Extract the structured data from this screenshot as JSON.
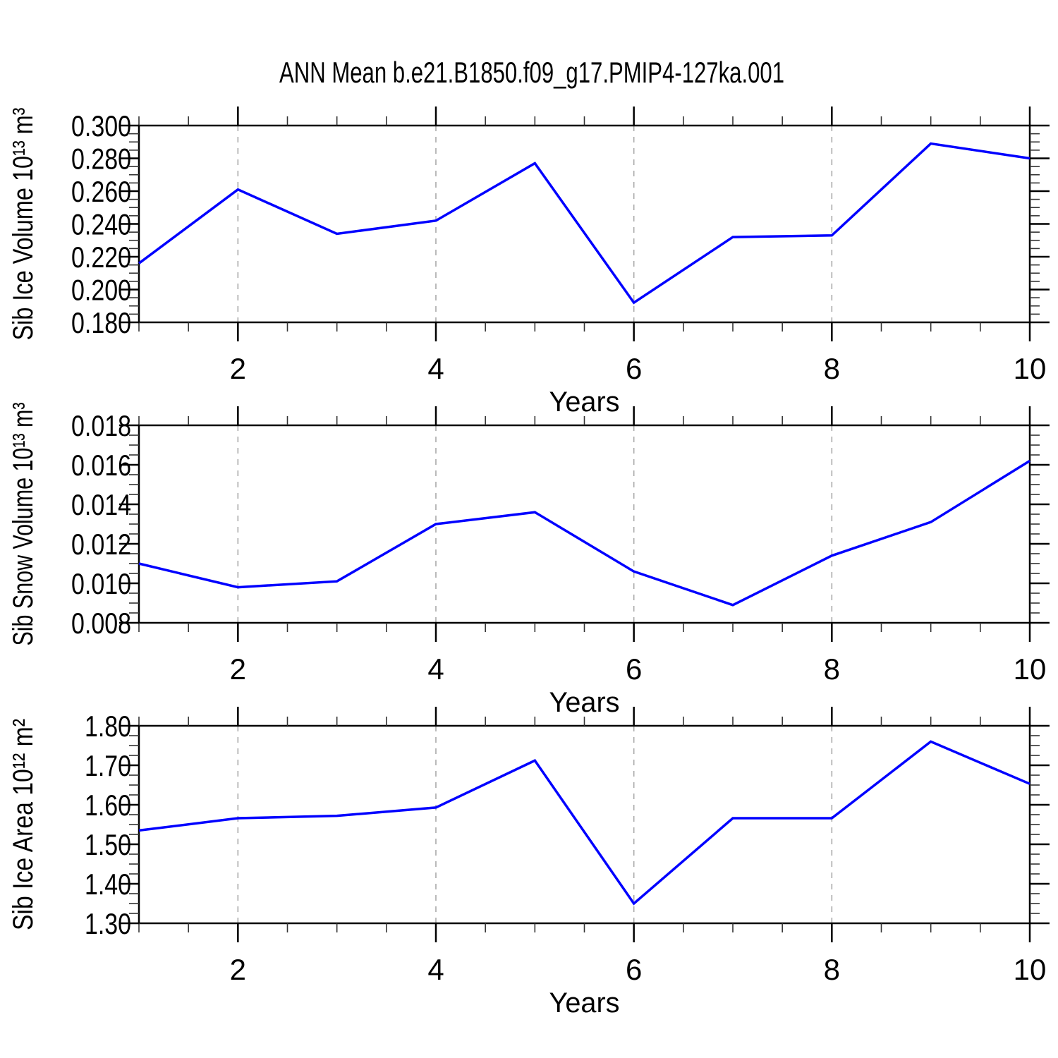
{
  "title": "ANN Mean b.e21.B1850.f09_g17.PMIP4-127ka.001",
  "colors": {
    "line": "#0000ff",
    "grid": "#aaaaaa",
    "axis": "#000000",
    "minor_tick": "#333333"
  },
  "chart_data": [
    {
      "type": "line",
      "ylabel": "Sib Ice Volume 10¹³ m³",
      "xlabel": "Years",
      "x": [
        1,
        2,
        3,
        4,
        5,
        6,
        7,
        8,
        9,
        10
      ],
      "values": [
        0.216,
        0.261,
        0.234,
        0.242,
        0.277,
        0.192,
        0.232,
        0.233,
        0.289,
        0.28
      ],
      "xlim": [
        1,
        10
      ],
      "ylim": [
        0.18,
        0.3
      ],
      "yticks": {
        "major_values": [
          0.18,
          0.2,
          0.22,
          0.24,
          0.26,
          0.28,
          0.3
        ],
        "labels": [
          "0.180",
          "0.200",
          "0.220",
          "0.240",
          "0.260",
          "0.280",
          "0.300"
        ],
        "minor_step": 0.005
      },
      "xticks": {
        "major_values": [
          2,
          4,
          6,
          8,
          10
        ],
        "labels": [
          "2",
          "4",
          "6",
          "8",
          "10"
        ],
        "minor_step": 0.5
      },
      "grid_x": [
        2,
        4,
        6,
        8
      ],
      "grid": "vertical-dashed",
      "legend": "none"
    },
    {
      "type": "line",
      "ylabel": "Sib Snow Volume 10¹³ m³",
      "xlabel": "Years",
      "x": [
        1,
        2,
        3,
        4,
        5,
        6,
        7,
        8,
        9,
        10
      ],
      "values": [
        0.011,
        0.0098,
        0.0101,
        0.013,
        0.0136,
        0.0106,
        0.0089,
        0.0114,
        0.0131,
        0.0162
      ],
      "xlim": [
        1,
        10
      ],
      "ylim": [
        0.008,
        0.018
      ],
      "yticks": {
        "major_values": [
          0.008,
          0.01,
          0.012,
          0.014,
          0.016,
          0.018
        ],
        "labels": [
          "0.008",
          "0.010",
          "0.012",
          "0.014",
          "0.016",
          "0.018"
        ],
        "minor_step": 0.0005
      },
      "xticks": {
        "major_values": [
          2,
          4,
          6,
          8,
          10
        ],
        "labels": [
          "2",
          "4",
          "6",
          "8",
          "10"
        ],
        "minor_step": 0.5
      },
      "grid_x": [
        2,
        4,
        6,
        8
      ],
      "grid": "vertical-dashed",
      "legend": "none"
    },
    {
      "type": "line",
      "ylabel": "Sib Ice Area 10¹² m²",
      "xlabel": "Years",
      "x": [
        1,
        2,
        3,
        4,
        5,
        6,
        7,
        8,
        9,
        10
      ],
      "values": [
        1.535,
        1.566,
        1.572,
        1.593,
        1.712,
        1.35,
        1.566,
        1.566,
        1.76,
        1.653
      ],
      "xlim": [
        1,
        10
      ],
      "ylim": [
        1.3,
        1.8
      ],
      "yticks": {
        "major_values": [
          1.3,
          1.4,
          1.5,
          1.6,
          1.7,
          1.8
        ],
        "labels": [
          "1.30",
          "1.40",
          "1.50",
          "1.60",
          "1.70",
          "1.80"
        ],
        "minor_step": 0.025
      },
      "xticks": {
        "major_values": [
          2,
          4,
          6,
          8,
          10
        ],
        "labels": [
          "2",
          "4",
          "6",
          "8",
          "10"
        ],
        "minor_step": 0.5
      },
      "grid_x": [
        2,
        4,
        6,
        8
      ],
      "grid": "vertical-dashed",
      "legend": "none"
    }
  ]
}
